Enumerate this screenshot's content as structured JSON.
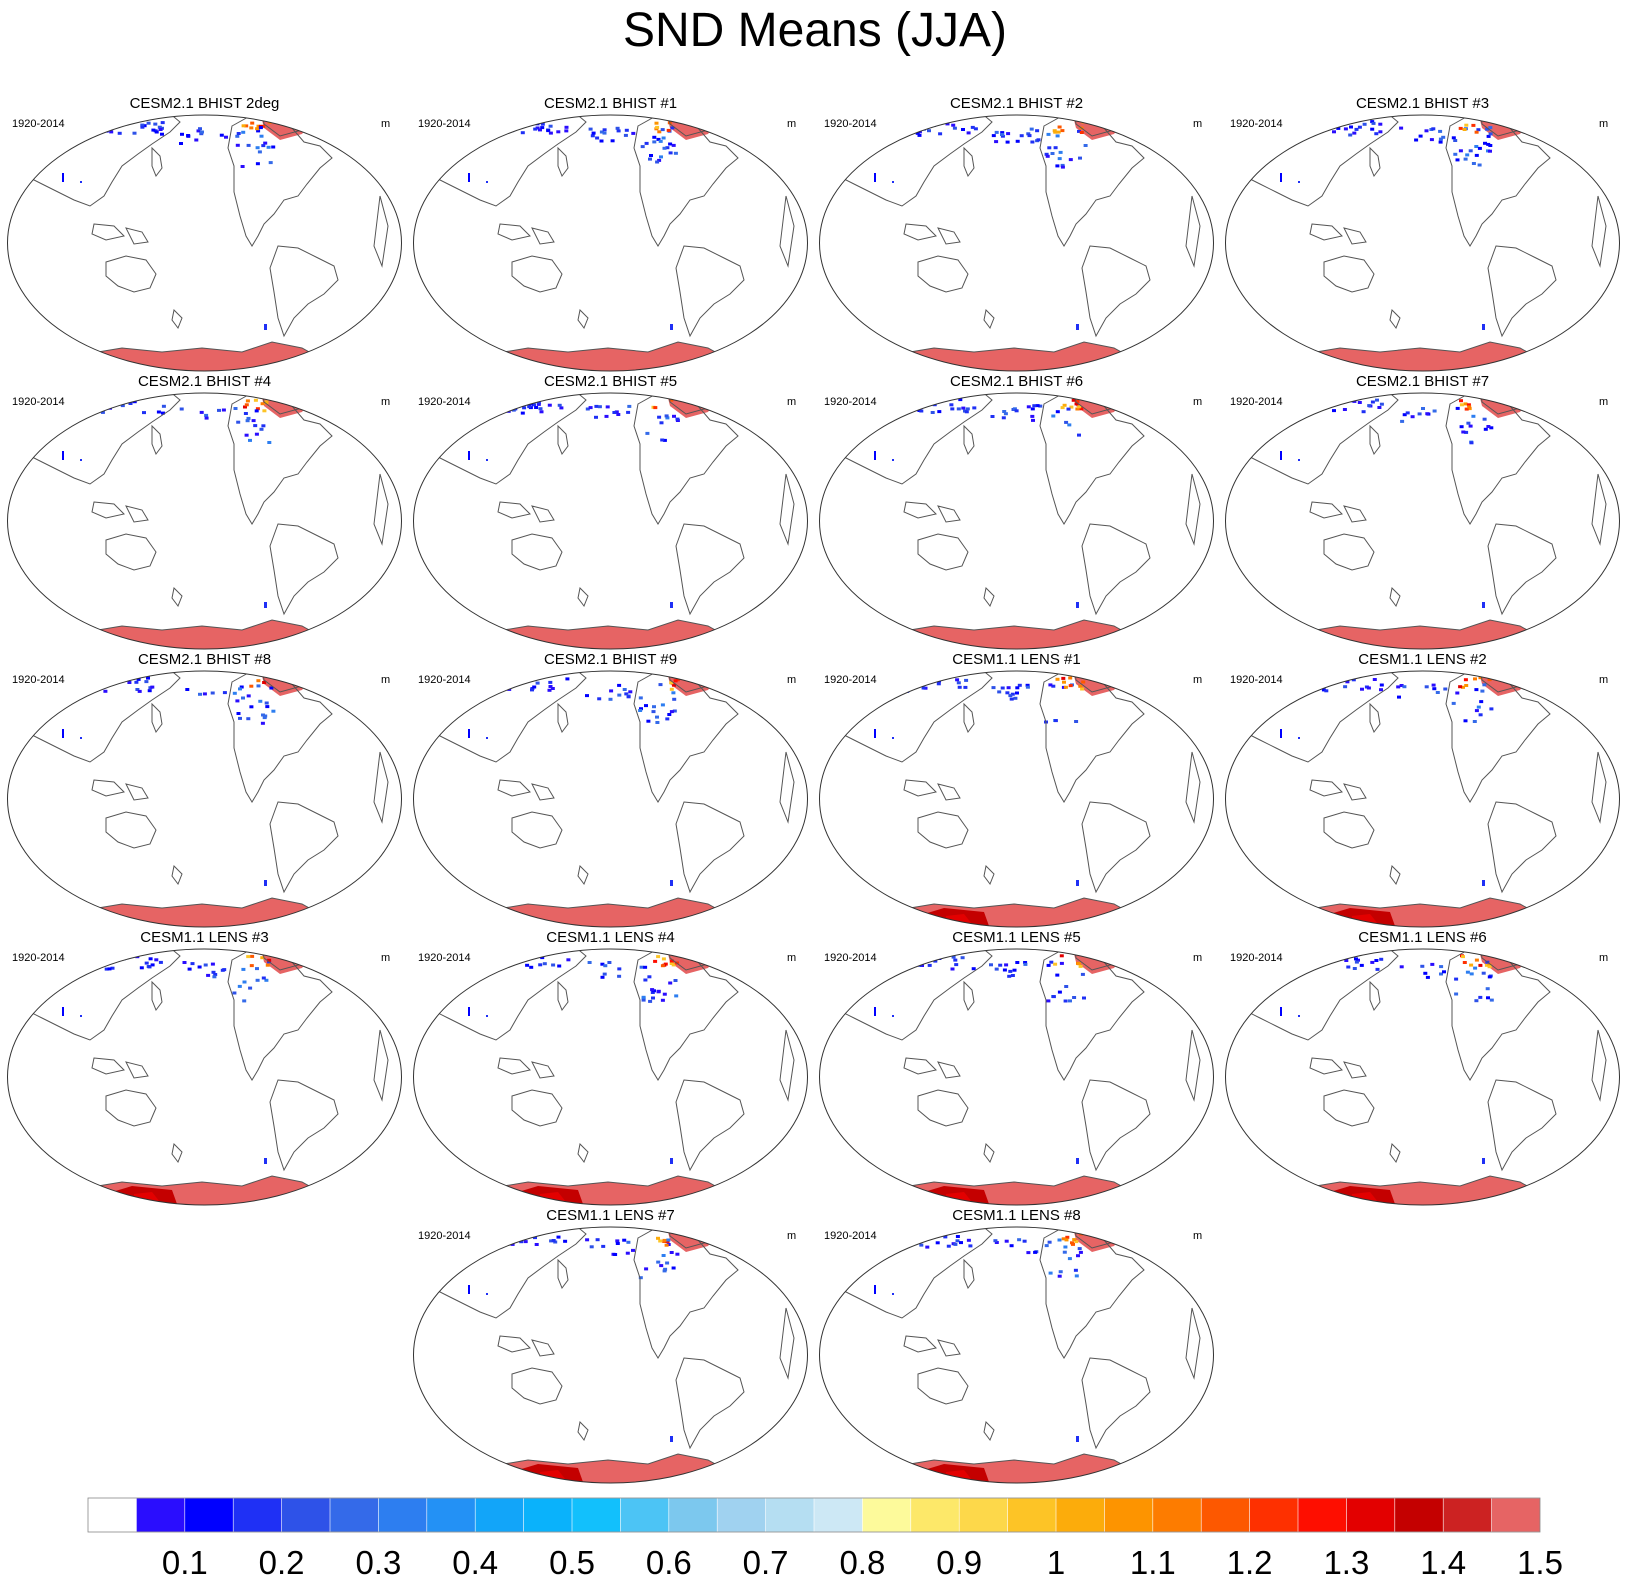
{
  "chart_data": {
    "type": "heatmap",
    "projection": "Robinson (Pacific-centered world map)",
    "title": "SND Means (JJA)",
    "variable": "SND",
    "season": "JJA",
    "units": "m",
    "period": "1920-2014",
    "panels": [
      {
        "title": "CESM2.1 BHIST 2deg",
        "period": "1920-2014",
        "units": "m",
        "antarctic_max_class": 25,
        "arctic_coverage": "high"
      },
      {
        "title": "CESM2.1 BHIST #1",
        "period": "1920-2014",
        "units": "m",
        "antarctic_max_class": 25,
        "arctic_coverage": "high"
      },
      {
        "title": "CESM2.1 BHIST #2",
        "period": "1920-2014",
        "units": "m",
        "antarctic_max_class": 25,
        "arctic_coverage": "high"
      },
      {
        "title": "CESM2.1 BHIST #3",
        "period": "1920-2014",
        "units": "m",
        "antarctic_max_class": 25,
        "arctic_coverage": "high"
      },
      {
        "title": "CESM2.1 BHIST #4",
        "period": "1920-2014",
        "units": "m",
        "antarctic_max_class": 25,
        "arctic_coverage": "medium"
      },
      {
        "title": "CESM2.1 BHIST #5",
        "period": "1920-2014",
        "units": "m",
        "antarctic_max_class": 25,
        "arctic_coverage": "medium"
      },
      {
        "title": "CESM2.1 BHIST #6",
        "period": "1920-2014",
        "units": "m",
        "antarctic_max_class": 25,
        "arctic_coverage": "medium"
      },
      {
        "title": "CESM2.1 BHIST #7",
        "period": "1920-2014",
        "units": "m",
        "antarctic_max_class": 25,
        "arctic_coverage": "medium"
      },
      {
        "title": "CESM2.1 BHIST #8",
        "period": "1920-2014",
        "units": "m",
        "antarctic_max_class": 25,
        "arctic_coverage": "medium"
      },
      {
        "title": "CESM2.1 BHIST #9",
        "period": "1920-2014",
        "units": "m",
        "antarctic_max_class": 25,
        "arctic_coverage": "medium"
      },
      {
        "title": "CESM1.1 LENS #1",
        "period": "1920-2014",
        "units": "m",
        "antarctic_max_class": 23,
        "arctic_coverage": "medium"
      },
      {
        "title": "CESM1.1 LENS #2",
        "period": "1920-2014",
        "units": "m",
        "antarctic_max_class": 23,
        "arctic_coverage": "medium"
      },
      {
        "title": "CESM1.1 LENS #3",
        "period": "1920-2014",
        "units": "m",
        "antarctic_max_class": 23,
        "arctic_coverage": "medium"
      },
      {
        "title": "CESM1.1 LENS #4",
        "period": "1920-2014",
        "units": "m",
        "antarctic_max_class": 23,
        "arctic_coverage": "medium"
      },
      {
        "title": "CESM1.1 LENS #5",
        "period": "1920-2014",
        "units": "m",
        "antarctic_max_class": 23,
        "arctic_coverage": "medium"
      },
      {
        "title": "CESM1.1 LENS #6",
        "period": "1920-2014",
        "units": "m",
        "antarctic_max_class": 23,
        "arctic_coverage": "medium"
      },
      {
        "title": "CESM1.1 LENS #7",
        "period": "1920-2014",
        "units": "m",
        "antarctic_max_class": 23,
        "arctic_coverage": "medium"
      },
      {
        "title": "CESM1.1 LENS #8",
        "period": "1920-2014",
        "units": "m",
        "antarctic_max_class": 23,
        "arctic_coverage": "medium"
      }
    ],
    "colorbar": {
      "tick_labels": [
        "0.1",
        "0.2",
        "0.3",
        "0.4",
        "0.5",
        "0.6",
        "0.7",
        "0.8",
        "0.9",
        "1",
        "1.1",
        "1.2",
        "1.3",
        "1.4",
        "1.5"
      ],
      "levels": [
        0.05,
        0.1,
        0.15,
        0.2,
        0.25,
        0.3,
        0.35,
        0.4,
        0.45,
        0.5,
        0.55,
        0.6,
        0.65,
        0.7,
        0.75,
        0.8,
        0.85,
        0.9,
        0.95,
        1.0,
        1.05,
        1.1,
        1.15,
        1.2,
        1.25,
        1.3,
        1.35,
        1.4,
        1.45,
        1.5
      ],
      "colors": [
        "#ffffff",
        "#2a0dfe",
        "#0000ff",
        "#1f30f5",
        "#2e52e8",
        "#346ae9",
        "#2d7ef0",
        "#2391f5",
        "#12a5f9",
        "#0ab2fb",
        "#12c0fc",
        "#4cc4f5",
        "#7cc8ee",
        "#a0d2f0",
        "#b5def2",
        "#cde8f5",
        "#fdfa9b",
        "#fde869",
        "#fdd84a",
        "#fdc426",
        "#fcac0b",
        "#fd9400",
        "#fd7c00",
        "#fd5800",
        "#fe3000",
        "#fe0e00",
        "#e30000",
        "#c40000",
        "#cc2222",
        "#e66464"
      ]
    }
  }
}
